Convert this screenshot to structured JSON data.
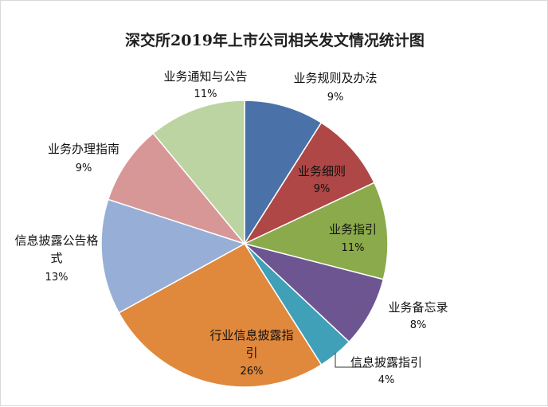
{
  "chart_data": {
    "type": "pie",
    "title": "深交所2019年上市公司相关发文情况统计图",
    "slices": [
      {
        "label": "业务规则及办法",
        "value": 9,
        "value_label": "9%",
        "color": "#4A72A9"
      },
      {
        "label": "业务细则",
        "value": 9,
        "value_label": "9%",
        "color": "#AE4745"
      },
      {
        "label": "业务指引",
        "value": 11,
        "value_label": "11%",
        "color": "#8BAA4B"
      },
      {
        "label": "业务备忘录",
        "value": 8,
        "value_label": "8%",
        "color": "#6D5591"
      },
      {
        "label": "信息披露指引",
        "value": 4,
        "value_label": "4%",
        "color": "#3FA0B8"
      },
      {
        "label": "行业信息披露指引",
        "value": 26,
        "value_label": "26%",
        "color": "#E0883C"
      },
      {
        "label": "信息披露公告格式",
        "value": 13,
        "value_label": "13%",
        "color": "#97AFD7"
      },
      {
        "label": "业务办理指南",
        "value": 9,
        "value_label": "9%",
        "color": "#D79796"
      },
      {
        "label": "业务通知与公告",
        "value": 11,
        "value_label": "11%",
        "color": "#BCD3A2"
      }
    ]
  }
}
